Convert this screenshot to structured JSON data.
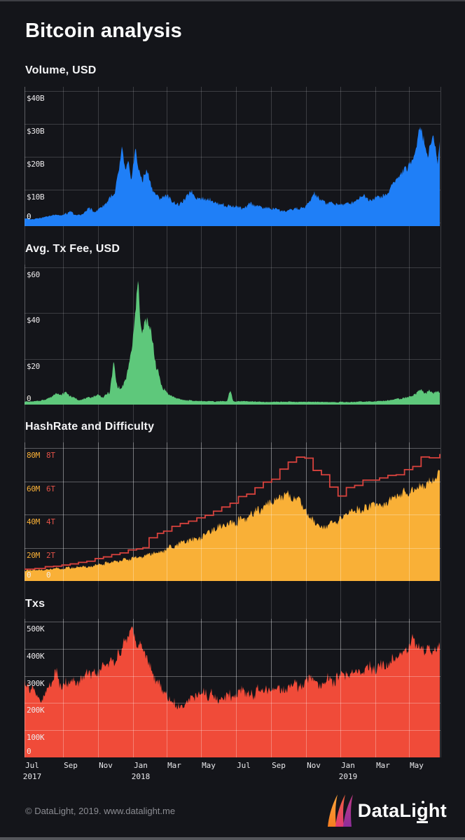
{
  "page": {
    "title": "Bitcoin analysis",
    "background": "#14151a"
  },
  "colors": {
    "grid": "rgba(222,224,232,0.20)",
    "grid_on_top": "rgba(255,255,255,0.30)",
    "axis_label": "#eceaec",
    "footer_text": "#8b8c92"
  },
  "x_axis": {
    "ticks": [
      {
        "month": "Jul",
        "year": "2017"
      },
      {
        "month": "Sep"
      },
      {
        "month": "Nov"
      },
      {
        "month": "Jan",
        "year": "2018"
      },
      {
        "month": "Mar"
      },
      {
        "month": "May"
      },
      {
        "month": "Jul"
      },
      {
        "month": "Sep"
      },
      {
        "month": "Nov"
      },
      {
        "month": "Jan",
        "year": "2019"
      },
      {
        "month": "Mar"
      },
      {
        "month": "May"
      }
    ]
  },
  "footer": {
    "copyright": "© DataLight, 2019. www.datalight.me",
    "logo": {
      "pre": "DataLi",
      "g": "g",
      "post": "ht"
    },
    "logo_gradients": [
      [
        "#ffa63d",
        "#f57d20"
      ],
      [
        "#f0633c",
        "#e13a74"
      ],
      [
        "#c23a84",
        "#8e2d9a"
      ]
    ]
  },
  "chart_data": [
    {
      "type": "area",
      "title": "Volume, USD",
      "legend_position": "none",
      "grid": true,
      "grid_on_top": false,
      "color": "#1f7ff7",
      "ylim": [
        0,
        42
      ],
      "ymax_tick": 40,
      "yticks": [
        {
          "v": 40,
          "label": "$40B",
          "color": "#eceaec"
        },
        {
          "v": 30,
          "label": "$30B",
          "color": "#eceaec"
        },
        {
          "v": 20,
          "label": "$20B",
          "color": "#eceaec"
        },
        {
          "v": 10,
          "label": "$10B",
          "color": "#eceaec"
        },
        {
          "v": 0,
          "label": "0",
          "color": "#ffffff"
        }
      ],
      "unit": "billion USD",
      "noise": {
        "seed": 3,
        "amp": 0.18
      },
      "anchors": [
        [
          0,
          1.3
        ],
        [
          0.02,
          1.0
        ],
        [
          0.05,
          1.8
        ],
        [
          0.075,
          2.6
        ],
        [
          0.092,
          2.2
        ],
        [
          0.11,
          3.4
        ],
        [
          0.125,
          2.2
        ],
        [
          0.14,
          2.6
        ],
        [
          0.155,
          4.8
        ],
        [
          0.165,
          3.2
        ],
        [
          0.176,
          3.6
        ],
        [
          0.19,
          5.5
        ],
        [
          0.205,
          7.5
        ],
        [
          0.218,
          9
        ],
        [
          0.228,
          16
        ],
        [
          0.235,
          22
        ],
        [
          0.243,
          15
        ],
        [
          0.25,
          18
        ],
        [
          0.256,
          14
        ],
        [
          0.261,
          17
        ],
        [
          0.268,
          23
        ],
        [
          0.275,
          16
        ],
        [
          0.285,
          13
        ],
        [
          0.295,
          15
        ],
        [
          0.31,
          9.5
        ],
        [
          0.325,
          7.5
        ],
        [
          0.341,
          8.5
        ],
        [
          0.355,
          6.2
        ],
        [
          0.37,
          5.5
        ],
        [
          0.385,
          6.8
        ],
        [
          0.4,
          9.5
        ],
        [
          0.415,
          7.0
        ],
        [
          0.424,
          7.8
        ],
        [
          0.44,
          7.2
        ],
        [
          0.46,
          6.2
        ],
        [
          0.48,
          5.2
        ],
        [
          0.508,
          4.8
        ],
        [
          0.525,
          4.4
        ],
        [
          0.545,
          5.6
        ],
        [
          0.565,
          4.6
        ],
        [
          0.592,
          4.4
        ],
        [
          0.61,
          3.9
        ],
        [
          0.63,
          3.7
        ],
        [
          0.655,
          4.1
        ],
        [
          0.676,
          4.4
        ],
        [
          0.688,
          6.8
        ],
        [
          0.7,
          8.8
        ],
        [
          0.715,
          6.9
        ],
        [
          0.73,
          6.2
        ],
        [
          0.758,
          5.4
        ],
        [
          0.78,
          5.6
        ],
        [
          0.8,
          6.6
        ],
        [
          0.815,
          8.2
        ],
        [
          0.83,
          6.8
        ],
        [
          0.842,
          7.6
        ],
        [
          0.86,
          8.4
        ],
        [
          0.875,
          9.2
        ],
        [
          0.887,
          12.5
        ],
        [
          0.9,
          13.5
        ],
        [
          0.912,
          15.5
        ],
        [
          0.923,
          16.5
        ],
        [
          0.932,
          19
        ],
        [
          0.943,
          23
        ],
        [
          0.952,
          30
        ],
        [
          0.96,
          25
        ],
        [
          0.97,
          20
        ],
        [
          0.985,
          26
        ],
        [
          0.995,
          19
        ],
        [
          1,
          25
        ]
      ]
    },
    {
      "type": "area",
      "title": "Avg. Tx Fee, USD",
      "legend_position": "none",
      "grid": true,
      "grid_on_top": false,
      "color": "#5ec87b",
      "ylim": [
        0,
        61
      ],
      "ymax_tick": 60,
      "yticks": [
        {
          "v": 60,
          "label": "$60",
          "color": "#eceaec"
        },
        {
          "v": 40,
          "label": "$40",
          "color": "#eceaec"
        },
        {
          "v": 20,
          "label": "$20",
          "color": "#eceaec"
        },
        {
          "v": 0,
          "label": "0",
          "color": "#f2ece6"
        }
      ],
      "unit": "USD",
      "noise": {
        "seed": 7,
        "amp": 0.22
      },
      "anchors": [
        [
          0,
          1.2
        ],
        [
          0.03,
          1.5
        ],
        [
          0.05,
          2.2
        ],
        [
          0.065,
          3.4
        ],
        [
          0.075,
          5.2
        ],
        [
          0.085,
          4.0
        ],
        [
          0.1,
          5.8
        ],
        [
          0.112,
          3.2
        ],
        [
          0.13,
          2.2
        ],
        [
          0.15,
          2.6
        ],
        [
          0.165,
          3.4
        ],
        [
          0.176,
          4.2
        ],
        [
          0.19,
          3.2
        ],
        [
          0.205,
          5.5
        ],
        [
          0.215,
          19
        ],
        [
          0.222,
          9
        ],
        [
          0.232,
          7
        ],
        [
          0.245,
          11
        ],
        [
          0.255,
          21
        ],
        [
          0.263,
          30
        ],
        [
          0.27,
          46
        ],
        [
          0.274,
          57
        ],
        [
          0.278,
          38
        ],
        [
          0.283,
          30
        ],
        [
          0.288,
          35
        ],
        [
          0.295,
          37
        ],
        [
          0.302,
          33
        ],
        [
          0.31,
          26
        ],
        [
          0.318,
          16
        ],
        [
          0.33,
          9
        ],
        [
          0.341,
          5.5
        ],
        [
          0.355,
          3.6
        ],
        [
          0.37,
          2.6
        ],
        [
          0.39,
          2.0
        ],
        [
          0.41,
          1.7
        ],
        [
          0.43,
          1.5
        ],
        [
          0.46,
          1.4
        ],
        [
          0.488,
          1.6
        ],
        [
          0.495,
          6.8
        ],
        [
          0.503,
          1.5
        ],
        [
          0.55,
          1.3
        ],
        [
          0.58,
          1.2
        ],
        [
          0.61,
          1.2
        ],
        [
          0.65,
          1.2
        ],
        [
          0.69,
          1.2
        ],
        [
          0.73,
          1.1
        ],
        [
          0.758,
          1.1
        ],
        [
          0.79,
          1.2
        ],
        [
          0.82,
          1.3
        ],
        [
          0.85,
          1.5
        ],
        [
          0.88,
          1.9
        ],
        [
          0.9,
          2.4
        ],
        [
          0.92,
          3.2
        ],
        [
          0.94,
          4.4
        ],
        [
          0.955,
          6.2
        ],
        [
          0.965,
          5.0
        ],
        [
          0.975,
          6.6
        ],
        [
          0.985,
          4.6
        ],
        [
          1,
          6.0
        ]
      ]
    },
    {
      "type": "area+step-line",
      "title": "HashRate and Difficulty",
      "legend_position": "none",
      "grid": true,
      "grid_on_top": true,
      "color": "#f9b037",
      "line_color": "#d8423d",
      "ylim": [
        0,
        84
      ],
      "ymax_tick": 80,
      "ylim2": [
        0,
        8.4
      ],
      "ymax_tick2": 8,
      "yticks": [
        {
          "v": 80,
          "label": "80M",
          "color": "#f9b037",
          "label2": "8T",
          "color2": "#e25248"
        },
        {
          "v": 60,
          "label": "60M",
          "color": "#f9b037",
          "label2": "6T",
          "color2": "#e25248"
        },
        {
          "v": 40,
          "label": "40M",
          "color": "#f9b037",
          "label2": "4T",
          "color2": "#e25248"
        },
        {
          "v": 20,
          "label": "20M",
          "color": "#f9b037",
          "label2": "2T",
          "color2": "#e25248"
        },
        {
          "v": 0,
          "label": "0",
          "color": "#f2ece6",
          "label2": "0",
          "color2": "#f2ece6"
        }
      ],
      "unit": "hashrate: TH/s (millions), difficulty: T",
      "noise": {
        "seed": 11,
        "amp": 0.16
      },
      "anchors": [
        [
          0,
          6.5
        ],
        [
          0.04,
          6.8
        ],
        [
          0.085,
          7.5
        ],
        [
          0.13,
          8.5
        ],
        [
          0.176,
          9.5
        ],
        [
          0.21,
          11
        ],
        [
          0.24,
          12.5
        ],
        [
          0.261,
          13.5
        ],
        [
          0.29,
          15.5
        ],
        [
          0.32,
          17.5
        ],
        [
          0.341,
          19
        ],
        [
          0.37,
          22
        ],
        [
          0.4,
          25
        ],
        [
          0.424,
          27
        ],
        [
          0.45,
          30
        ],
        [
          0.48,
          33
        ],
        [
          0.508,
          35
        ],
        [
          0.54,
          38
        ],
        [
          0.565,
          43
        ],
        [
          0.592,
          47
        ],
        [
          0.61,
          50
        ],
        [
          0.63,
          52
        ],
        [
          0.645,
          49
        ],
        [
          0.66,
          50
        ],
        [
          0.676,
          44
        ],
        [
          0.69,
          39
        ],
        [
          0.705,
          35
        ],
        [
          0.72,
          32
        ],
        [
          0.735,
          34
        ],
        [
          0.758,
          36
        ],
        [
          0.78,
          40
        ],
        [
          0.8,
          43
        ],
        [
          0.82,
          44
        ],
        [
          0.842,
          46
        ],
        [
          0.86,
          47
        ],
        [
          0.88,
          49
        ],
        [
          0.9,
          52
        ],
        [
          0.923,
          54
        ],
        [
          0.945,
          57
        ],
        [
          0.965,
          59
        ],
        [
          0.985,
          62
        ],
        [
          1,
          65
        ]
      ],
      "series2_name": "Difficulty",
      "anchors2": [
        [
          0,
          0.71
        ],
        [
          0.025,
          0.75
        ],
        [
          0.05,
          0.86
        ],
        [
          0.07,
          0.89
        ],
        [
          0.09,
          0.96
        ],
        [
          0.11,
          1.03
        ],
        [
          0.13,
          1.12
        ],
        [
          0.15,
          1.19
        ],
        [
          0.17,
          1.35
        ],
        [
          0.19,
          1.45
        ],
        [
          0.21,
          1.59
        ],
        [
          0.23,
          1.69
        ],
        [
          0.25,
          1.87
        ],
        [
          0.27,
          1.93
        ],
        [
          0.285,
          2.0
        ],
        [
          0.3,
          2.6
        ],
        [
          0.32,
          2.87
        ],
        [
          0.335,
          3.0
        ],
        [
          0.355,
          3.29
        ],
        [
          0.375,
          3.46
        ],
        [
          0.395,
          3.6
        ],
        [
          0.415,
          3.8
        ],
        [
          0.435,
          3.95
        ],
        [
          0.455,
          4.2
        ],
        [
          0.475,
          4.45
        ],
        [
          0.495,
          4.68
        ],
        [
          0.515,
          5.08
        ],
        [
          0.535,
          5.23
        ],
        [
          0.555,
          5.61
        ],
        [
          0.575,
          5.95
        ],
        [
          0.595,
          6.12
        ],
        [
          0.615,
          6.73
        ],
        [
          0.635,
          7.15
        ],
        [
          0.655,
          7.45
        ],
        [
          0.675,
          7.39
        ],
        [
          0.695,
          6.65
        ],
        [
          0.715,
          6.39
        ],
        [
          0.735,
          5.65
        ],
        [
          0.755,
          5.11
        ],
        [
          0.775,
          5.62
        ],
        [
          0.795,
          5.75
        ],
        [
          0.815,
          6.07
        ],
        [
          0.835,
          6.07
        ],
        [
          0.855,
          6.2
        ],
        [
          0.875,
          6.35
        ],
        [
          0.895,
          6.39
        ],
        [
          0.915,
          6.7
        ],
        [
          0.935,
          6.89
        ],
        [
          0.955,
          7.46
        ],
        [
          0.975,
          7.41
        ],
        [
          1,
          7.6
        ]
      ]
    },
    {
      "type": "area",
      "title": "Txs",
      "legend_position": "none",
      "grid": true,
      "grid_on_top": true,
      "color": "#f04b39",
      "ylim": [
        0,
        520
      ],
      "ymax_tick": 500,
      "yticks": [
        {
          "v": 500,
          "label": "500K",
          "color": "#eceaec"
        },
        {
          "v": 400,
          "label": "400K",
          "color": "#eceaec"
        },
        {
          "v": 300,
          "label": "300K",
          "color": "#eceaec"
        },
        {
          "v": 200,
          "label": "200K",
          "color": "#eceaec"
        },
        {
          "v": 100,
          "label": "100K",
          "color": "#eceaec"
        },
        {
          "v": 0,
          "label": "0",
          "color": "#f2ece6"
        }
      ],
      "unit": "transactions per day (thousands)",
      "noise": {
        "seed": 15,
        "amp": 0.22
      },
      "anchors": [
        [
          0,
          285
        ],
        [
          0.012,
          255
        ],
        [
          0.025,
          240
        ],
        [
          0.04,
          205
        ],
        [
          0.055,
          265
        ],
        [
          0.07,
          300
        ],
        [
          0.078,
          335
        ],
        [
          0.085,
          280
        ],
        [
          0.1,
          265
        ],
        [
          0.112,
          300
        ],
        [
          0.125,
          250
        ],
        [
          0.14,
          285
        ],
        [
          0.155,
          300
        ],
        [
          0.176,
          310
        ],
        [
          0.19,
          330
        ],
        [
          0.205,
          345
        ],
        [
          0.22,
          370
        ],
        [
          0.235,
          405
        ],
        [
          0.248,
          445
        ],
        [
          0.258,
          490
        ],
        [
          0.265,
          440
        ],
        [
          0.272,
          395
        ],
        [
          0.278,
          425
        ],
        [
          0.285,
          405
        ],
        [
          0.295,
          345
        ],
        [
          0.31,
          300
        ],
        [
          0.325,
          260
        ],
        [
          0.341,
          230
        ],
        [
          0.36,
          210
        ],
        [
          0.38,
          195
        ],
        [
          0.4,
          215
        ],
        [
          0.424,
          235
        ],
        [
          0.45,
          225
        ],
        [
          0.475,
          215
        ],
        [
          0.5,
          235
        ],
        [
          0.525,
          245
        ],
        [
          0.55,
          238
        ],
        [
          0.575,
          250
        ],
        [
          0.592,
          252
        ],
        [
          0.61,
          242
        ],
        [
          0.63,
          258
        ],
        [
          0.655,
          265
        ],
        [
          0.676,
          272
        ],
        [
          0.695,
          292
        ],
        [
          0.71,
          262
        ],
        [
          0.73,
          282
        ],
        [
          0.758,
          295
        ],
        [
          0.78,
          312
        ],
        [
          0.8,
          305
        ],
        [
          0.82,
          322
        ],
        [
          0.842,
          335
        ],
        [
          0.862,
          348
        ],
        [
          0.882,
          362
        ],
        [
          0.9,
          372
        ],
        [
          0.912,
          385
        ],
        [
          0.925,
          395
        ],
        [
          0.935,
          465
        ],
        [
          0.945,
          400
        ],
        [
          0.96,
          388
        ],
        [
          0.975,
          398
        ],
        [
          0.99,
          392
        ],
        [
          1,
          415
        ]
      ]
    }
  ]
}
